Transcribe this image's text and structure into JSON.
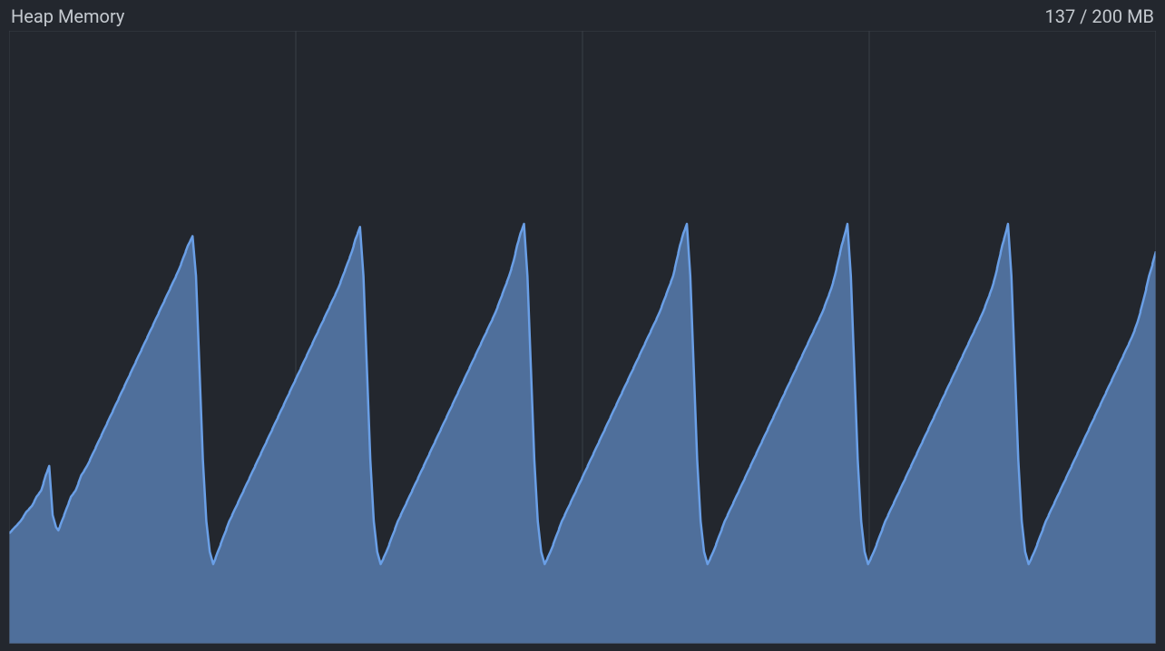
{
  "panel": {
    "title": "Heap Memory",
    "value_text": "137 / 200 MB",
    "background_color": "#23272e",
    "title_color": "#c4c9cf",
    "value_color": "#c4c9cf",
    "title_fontsize": 20,
    "value_fontsize": 20
  },
  "heap_chart": {
    "type": "area",
    "ylim": [
      0,
      200
    ],
    "ytick_step": 50,
    "grid": {
      "vertical_positions": [
        0,
        0.25,
        0.5,
        0.75,
        1.0
      ],
      "color": "#3a3f47",
      "border_color": "#3a3f47"
    },
    "line_color": "#6a9fe6",
    "line_width": 2.5,
    "fill_color": "#4f6f9b",
    "fill_opacity": 1.0,
    "background_color": "#23272e",
    "series": [
      {
        "x": 0.0,
        "y": 36
      },
      {
        "x": 0.005,
        "y": 38
      },
      {
        "x": 0.01,
        "y": 40
      },
      {
        "x": 0.015,
        "y": 43
      },
      {
        "x": 0.02,
        "y": 45
      },
      {
        "x": 0.024,
        "y": 48
      },
      {
        "x": 0.028,
        "y": 50
      },
      {
        "x": 0.032,
        "y": 55
      },
      {
        "x": 0.035,
        "y": 58
      },
      {
        "x": 0.038,
        "y": 42
      },
      {
        "x": 0.041,
        "y": 38
      },
      {
        "x": 0.043,
        "y": 37
      },
      {
        "x": 0.046,
        "y": 40
      },
      {
        "x": 0.05,
        "y": 44
      },
      {
        "x": 0.054,
        "y": 48
      },
      {
        "x": 0.058,
        "y": 50
      },
      {
        "x": 0.063,
        "y": 55
      },
      {
        "x": 0.068,
        "y": 58
      },
      {
        "x": 0.073,
        "y": 62
      },
      {
        "x": 0.078,
        "y": 66
      },
      {
        "x": 0.083,
        "y": 70
      },
      {
        "x": 0.088,
        "y": 74
      },
      {
        "x": 0.093,
        "y": 78
      },
      {
        "x": 0.098,
        "y": 82
      },
      {
        "x": 0.103,
        "y": 86
      },
      {
        "x": 0.108,
        "y": 90
      },
      {
        "x": 0.113,
        "y": 94
      },
      {
        "x": 0.118,
        "y": 98
      },
      {
        "x": 0.123,
        "y": 102
      },
      {
        "x": 0.128,
        "y": 106
      },
      {
        "x": 0.133,
        "y": 110
      },
      {
        "x": 0.138,
        "y": 114
      },
      {
        "x": 0.143,
        "y": 118
      },
      {
        "x": 0.148,
        "y": 122
      },
      {
        "x": 0.152,
        "y": 126
      },
      {
        "x": 0.156,
        "y": 130
      },
      {
        "x": 0.16,
        "y": 133
      },
      {
        "x": 0.163,
        "y": 120
      },
      {
        "x": 0.166,
        "y": 90
      },
      {
        "x": 0.169,
        "y": 60
      },
      {
        "x": 0.172,
        "y": 40
      },
      {
        "x": 0.175,
        "y": 30
      },
      {
        "x": 0.178,
        "y": 26
      },
      {
        "x": 0.182,
        "y": 30
      },
      {
        "x": 0.187,
        "y": 35
      },
      {
        "x": 0.192,
        "y": 40
      },
      {
        "x": 0.197,
        "y": 44
      },
      {
        "x": 0.202,
        "y": 48
      },
      {
        "x": 0.207,
        "y": 52
      },
      {
        "x": 0.212,
        "y": 56
      },
      {
        "x": 0.217,
        "y": 60
      },
      {
        "x": 0.222,
        "y": 64
      },
      {
        "x": 0.227,
        "y": 68
      },
      {
        "x": 0.232,
        "y": 72
      },
      {
        "x": 0.237,
        "y": 76
      },
      {
        "x": 0.242,
        "y": 80
      },
      {
        "x": 0.247,
        "y": 84
      },
      {
        "x": 0.252,
        "y": 88
      },
      {
        "x": 0.257,
        "y": 92
      },
      {
        "x": 0.262,
        "y": 96
      },
      {
        "x": 0.267,
        "y": 100
      },
      {
        "x": 0.272,
        "y": 104
      },
      {
        "x": 0.277,
        "y": 108
      },
      {
        "x": 0.282,
        "y": 112
      },
      {
        "x": 0.287,
        "y": 116
      },
      {
        "x": 0.291,
        "y": 120
      },
      {
        "x": 0.295,
        "y": 124
      },
      {
        "x": 0.299,
        "y": 128
      },
      {
        "x": 0.302,
        "y": 132
      },
      {
        "x": 0.306,
        "y": 136
      },
      {
        "x": 0.309,
        "y": 120
      },
      {
        "x": 0.312,
        "y": 90
      },
      {
        "x": 0.315,
        "y": 60
      },
      {
        "x": 0.318,
        "y": 40
      },
      {
        "x": 0.321,
        "y": 30
      },
      {
        "x": 0.324,
        "y": 26
      },
      {
        "x": 0.329,
        "y": 30
      },
      {
        "x": 0.334,
        "y": 35
      },
      {
        "x": 0.339,
        "y": 40
      },
      {
        "x": 0.344,
        "y": 44
      },
      {
        "x": 0.349,
        "y": 48
      },
      {
        "x": 0.354,
        "y": 52
      },
      {
        "x": 0.359,
        "y": 56
      },
      {
        "x": 0.364,
        "y": 60
      },
      {
        "x": 0.369,
        "y": 64
      },
      {
        "x": 0.374,
        "y": 68
      },
      {
        "x": 0.379,
        "y": 72
      },
      {
        "x": 0.384,
        "y": 76
      },
      {
        "x": 0.389,
        "y": 80
      },
      {
        "x": 0.394,
        "y": 84
      },
      {
        "x": 0.399,
        "y": 88
      },
      {
        "x": 0.404,
        "y": 92
      },
      {
        "x": 0.409,
        "y": 96
      },
      {
        "x": 0.414,
        "y": 100
      },
      {
        "x": 0.419,
        "y": 104
      },
      {
        "x": 0.424,
        "y": 108
      },
      {
        "x": 0.428,
        "y": 112
      },
      {
        "x": 0.432,
        "y": 116
      },
      {
        "x": 0.436,
        "y": 120
      },
      {
        "x": 0.44,
        "y": 125
      },
      {
        "x": 0.443,
        "y": 130
      },
      {
        "x": 0.446,
        "y": 134
      },
      {
        "x": 0.449,
        "y": 137
      },
      {
        "x": 0.452,
        "y": 120
      },
      {
        "x": 0.455,
        "y": 90
      },
      {
        "x": 0.458,
        "y": 60
      },
      {
        "x": 0.461,
        "y": 40
      },
      {
        "x": 0.464,
        "y": 30
      },
      {
        "x": 0.467,
        "y": 26
      },
      {
        "x": 0.472,
        "y": 30
      },
      {
        "x": 0.477,
        "y": 35
      },
      {
        "x": 0.482,
        "y": 40
      },
      {
        "x": 0.487,
        "y": 44
      },
      {
        "x": 0.492,
        "y": 48
      },
      {
        "x": 0.497,
        "y": 52
      },
      {
        "x": 0.502,
        "y": 56
      },
      {
        "x": 0.507,
        "y": 60
      },
      {
        "x": 0.512,
        "y": 64
      },
      {
        "x": 0.517,
        "y": 68
      },
      {
        "x": 0.522,
        "y": 72
      },
      {
        "x": 0.527,
        "y": 76
      },
      {
        "x": 0.532,
        "y": 80
      },
      {
        "x": 0.537,
        "y": 84
      },
      {
        "x": 0.542,
        "y": 88
      },
      {
        "x": 0.547,
        "y": 92
      },
      {
        "x": 0.552,
        "y": 96
      },
      {
        "x": 0.557,
        "y": 100
      },
      {
        "x": 0.562,
        "y": 104
      },
      {
        "x": 0.567,
        "y": 108
      },
      {
        "x": 0.571,
        "y": 112
      },
      {
        "x": 0.575,
        "y": 116
      },
      {
        "x": 0.579,
        "y": 120
      },
      {
        "x": 0.582,
        "y": 125
      },
      {
        "x": 0.585,
        "y": 130
      },
      {
        "x": 0.588,
        "y": 134
      },
      {
        "x": 0.591,
        "y": 137
      },
      {
        "x": 0.594,
        "y": 120
      },
      {
        "x": 0.597,
        "y": 90
      },
      {
        "x": 0.6,
        "y": 60
      },
      {
        "x": 0.603,
        "y": 40
      },
      {
        "x": 0.606,
        "y": 30
      },
      {
        "x": 0.609,
        "y": 26
      },
      {
        "x": 0.614,
        "y": 30
      },
      {
        "x": 0.619,
        "y": 35
      },
      {
        "x": 0.624,
        "y": 40
      },
      {
        "x": 0.629,
        "y": 44
      },
      {
        "x": 0.634,
        "y": 48
      },
      {
        "x": 0.639,
        "y": 52
      },
      {
        "x": 0.644,
        "y": 56
      },
      {
        "x": 0.649,
        "y": 60
      },
      {
        "x": 0.654,
        "y": 64
      },
      {
        "x": 0.659,
        "y": 68
      },
      {
        "x": 0.664,
        "y": 72
      },
      {
        "x": 0.669,
        "y": 76
      },
      {
        "x": 0.674,
        "y": 80
      },
      {
        "x": 0.679,
        "y": 84
      },
      {
        "x": 0.684,
        "y": 88
      },
      {
        "x": 0.689,
        "y": 92
      },
      {
        "x": 0.694,
        "y": 96
      },
      {
        "x": 0.699,
        "y": 100
      },
      {
        "x": 0.704,
        "y": 104
      },
      {
        "x": 0.709,
        "y": 108
      },
      {
        "x": 0.713,
        "y": 112
      },
      {
        "x": 0.717,
        "y": 116
      },
      {
        "x": 0.72,
        "y": 120
      },
      {
        "x": 0.723,
        "y": 125
      },
      {
        "x": 0.726,
        "y": 130
      },
      {
        "x": 0.729,
        "y": 134
      },
      {
        "x": 0.731,
        "y": 137
      },
      {
        "x": 0.734,
        "y": 120
      },
      {
        "x": 0.737,
        "y": 90
      },
      {
        "x": 0.74,
        "y": 60
      },
      {
        "x": 0.743,
        "y": 40
      },
      {
        "x": 0.746,
        "y": 30
      },
      {
        "x": 0.749,
        "y": 26
      },
      {
        "x": 0.754,
        "y": 30
      },
      {
        "x": 0.759,
        "y": 35
      },
      {
        "x": 0.764,
        "y": 40
      },
      {
        "x": 0.769,
        "y": 44
      },
      {
        "x": 0.774,
        "y": 48
      },
      {
        "x": 0.779,
        "y": 52
      },
      {
        "x": 0.784,
        "y": 56
      },
      {
        "x": 0.789,
        "y": 60
      },
      {
        "x": 0.794,
        "y": 64
      },
      {
        "x": 0.799,
        "y": 68
      },
      {
        "x": 0.804,
        "y": 72
      },
      {
        "x": 0.809,
        "y": 76
      },
      {
        "x": 0.814,
        "y": 80
      },
      {
        "x": 0.819,
        "y": 84
      },
      {
        "x": 0.824,
        "y": 88
      },
      {
        "x": 0.829,
        "y": 92
      },
      {
        "x": 0.834,
        "y": 96
      },
      {
        "x": 0.839,
        "y": 100
      },
      {
        "x": 0.844,
        "y": 104
      },
      {
        "x": 0.849,
        "y": 108
      },
      {
        "x": 0.853,
        "y": 112
      },
      {
        "x": 0.857,
        "y": 116
      },
      {
        "x": 0.86,
        "y": 120
      },
      {
        "x": 0.863,
        "y": 125
      },
      {
        "x": 0.866,
        "y": 130
      },
      {
        "x": 0.869,
        "y": 134
      },
      {
        "x": 0.871,
        "y": 137
      },
      {
        "x": 0.874,
        "y": 120
      },
      {
        "x": 0.877,
        "y": 90
      },
      {
        "x": 0.88,
        "y": 60
      },
      {
        "x": 0.883,
        "y": 40
      },
      {
        "x": 0.886,
        "y": 30
      },
      {
        "x": 0.889,
        "y": 26
      },
      {
        "x": 0.894,
        "y": 30
      },
      {
        "x": 0.899,
        "y": 35
      },
      {
        "x": 0.904,
        "y": 40
      },
      {
        "x": 0.909,
        "y": 44
      },
      {
        "x": 0.914,
        "y": 48
      },
      {
        "x": 0.919,
        "y": 52
      },
      {
        "x": 0.924,
        "y": 56
      },
      {
        "x": 0.929,
        "y": 60
      },
      {
        "x": 0.934,
        "y": 64
      },
      {
        "x": 0.939,
        "y": 68
      },
      {
        "x": 0.944,
        "y": 72
      },
      {
        "x": 0.949,
        "y": 76
      },
      {
        "x": 0.954,
        "y": 80
      },
      {
        "x": 0.959,
        "y": 84
      },
      {
        "x": 0.964,
        "y": 88
      },
      {
        "x": 0.969,
        "y": 92
      },
      {
        "x": 0.974,
        "y": 96
      },
      {
        "x": 0.979,
        "y": 100
      },
      {
        "x": 0.984,
        "y": 105
      },
      {
        "x": 0.989,
        "y": 112
      },
      {
        "x": 0.994,
        "y": 120
      },
      {
        "x": 1.0,
        "y": 128
      }
    ]
  }
}
